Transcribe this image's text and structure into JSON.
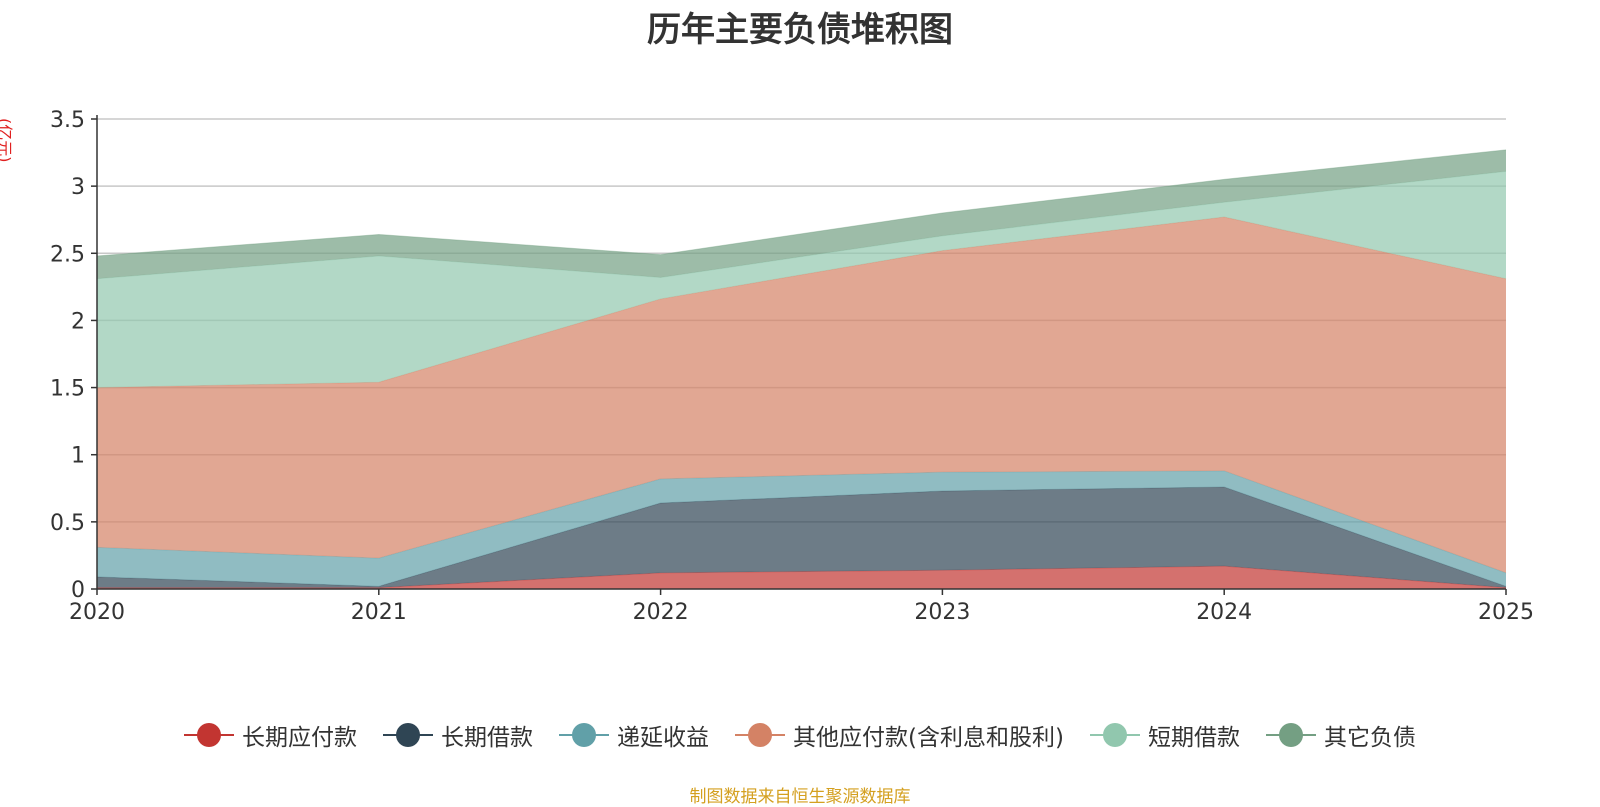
{
  "chart_data": {
    "type": "area",
    "stacked": true,
    "title": "历年主要负债堆积图",
    "ylabel": "(亿元)",
    "xlabel": "",
    "x": [
      "2020",
      "2021",
      "2022",
      "2023",
      "2024",
      "2025"
    ],
    "ylim": [
      0,
      3.5
    ],
    "yticks": [
      "0",
      "0.5",
      "1",
      "1.5",
      "2",
      "2.5",
      "3",
      "3.5"
    ],
    "grid": true,
    "legend_position": "bottom",
    "series": [
      {
        "name": "长期应付款",
        "color": "#c23531",
        "values": [
          0.01,
          0.01,
          0.12,
          0.14,
          0.17,
          0.01
        ]
      },
      {
        "name": "长期借款",
        "color": "#2f4554",
        "values": [
          0.08,
          0.01,
          0.52,
          0.59,
          0.59,
          0.01
        ]
      },
      {
        "name": "递延收益",
        "color": "#61a0a8",
        "values": [
          0.22,
          0.21,
          0.18,
          0.14,
          0.12,
          0.1
        ]
      },
      {
        "name": "其他应付款(含利息和股利)",
        "color": "#d48265",
        "values": [
          1.19,
          1.31,
          1.34,
          1.65,
          1.89,
          2.19
        ]
      },
      {
        "name": "短期借款",
        "color": "#91c7ae",
        "values": [
          0.81,
          0.94,
          0.16,
          0.11,
          0.11,
          0.8
        ]
      },
      {
        "name": "其它负债",
        "color": "#749f83",
        "values": [
          0.17,
          0.16,
          0.17,
          0.17,
          0.17,
          0.16
        ]
      }
    ]
  },
  "source_note": "制图数据来自恒生聚源数据库"
}
